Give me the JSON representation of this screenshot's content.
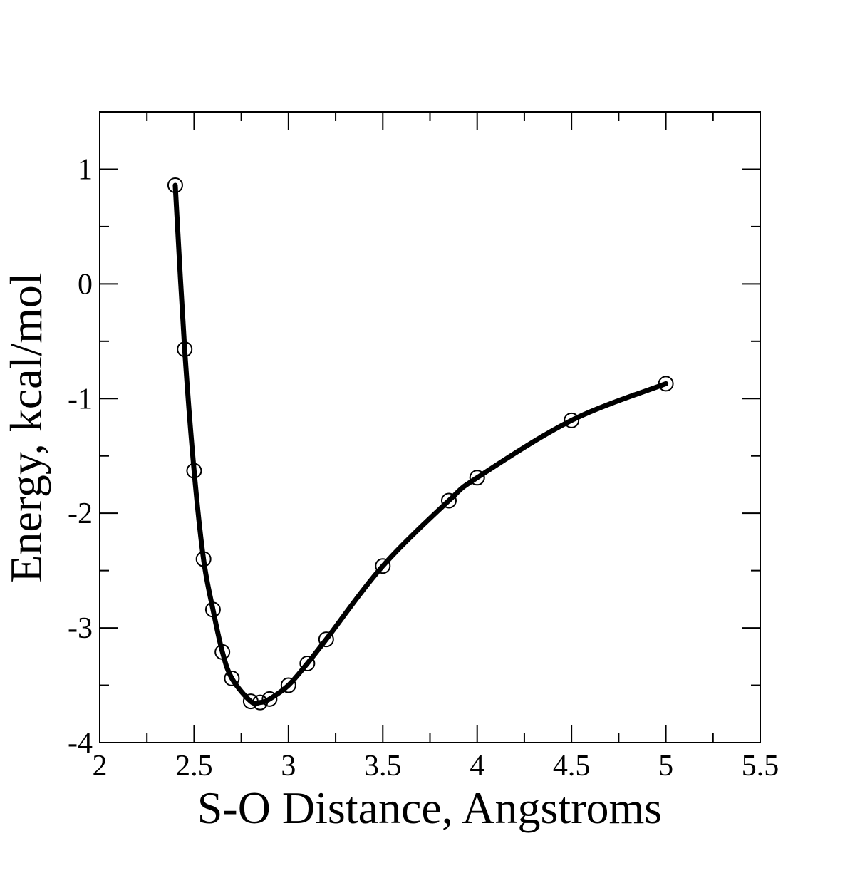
{
  "chart_data": {
    "type": "line",
    "title": "",
    "xlabel": "S-O Distance, Angstroms",
    "ylabel": "Energy, kcal/mol",
    "xlim": [
      2,
      5.5
    ],
    "ylim": [
      -4,
      1.5
    ],
    "x_major_ticks": [
      2,
      2.5,
      3,
      3.5,
      4,
      4.5,
      5,
      5.5
    ],
    "x_tick_labels": [
      "2",
      "2.5",
      "3",
      "3.5",
      "4",
      "4.5",
      "5",
      "5.5"
    ],
    "x_minor_ticks": [
      2.25,
      2.75,
      3.25,
      3.75,
      4.25,
      4.75,
      5.25
    ],
    "y_major_ticks": [
      -4,
      -3,
      -2,
      -1,
      0,
      1
    ],
    "y_tick_labels": [
      "-4",
      "-3",
      "-2",
      "-1",
      "0",
      "1"
    ],
    "y_minor_ticks": [
      -3.5,
      -2.5,
      -1.5,
      -0.5,
      0.5
    ],
    "grid": false,
    "legend": "none",
    "line_color": "#000000",
    "series": [
      {
        "marker": "open-circle",
        "x": [
          2.4,
          2.45,
          2.5,
          2.55,
          2.6,
          2.65,
          2.7,
          2.8,
          2.85,
          2.9,
          3.0,
          3.1,
          3.2,
          3.5,
          3.85,
          4.0,
          4.5,
          5.0
        ],
        "y": [
          0.86,
          -0.57,
          -1.63,
          -2.4,
          -2.84,
          -3.21,
          -3.44,
          -3.64,
          -3.65,
          -3.62,
          -3.5,
          -3.31,
          -3.1,
          -2.46,
          -1.89,
          -1.69,
          -1.19,
          -0.87
        ]
      }
    ]
  }
}
